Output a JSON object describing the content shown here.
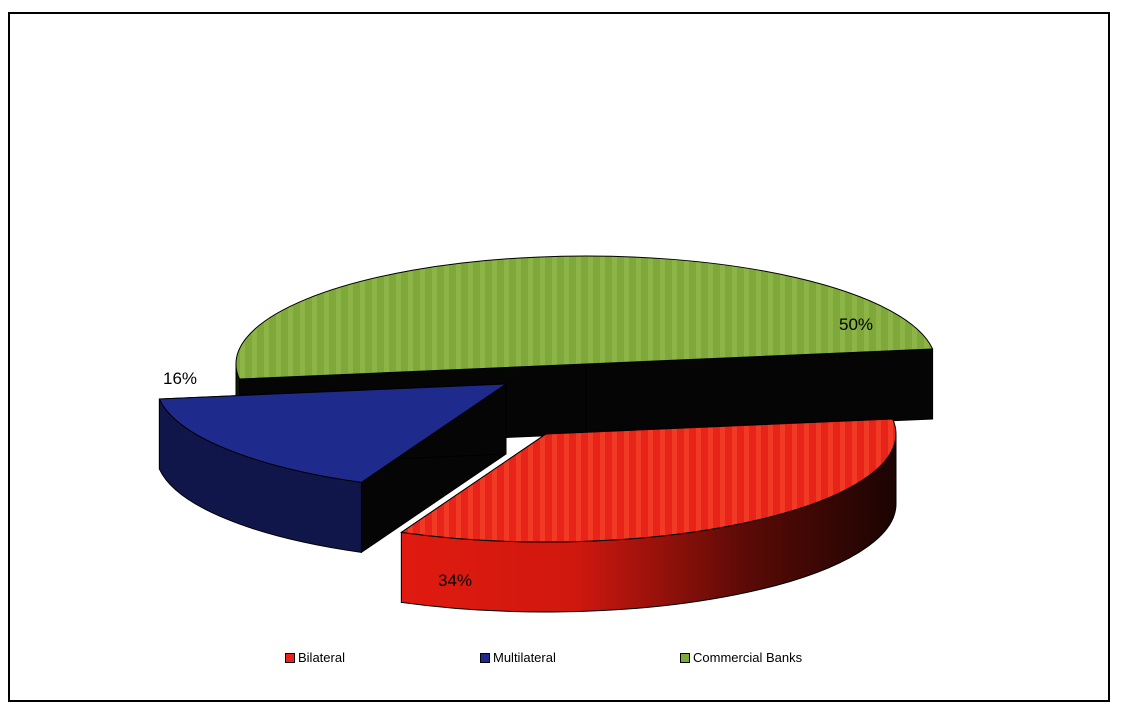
{
  "chart_data": {
    "type": "pie",
    "title": "",
    "labels": [
      "Bilateral",
      "Multilateral",
      "Commercial Banks"
    ],
    "values": [
      34,
      16,
      50
    ],
    "value_labels": [
      "34%",
      "16%",
      "50%"
    ],
    "colors": [
      "#e8241a",
      "#1e2a8c",
      "#7ea83a"
    ],
    "legend_position": "bottom",
    "three_d": true,
    "exploded": true
  }
}
